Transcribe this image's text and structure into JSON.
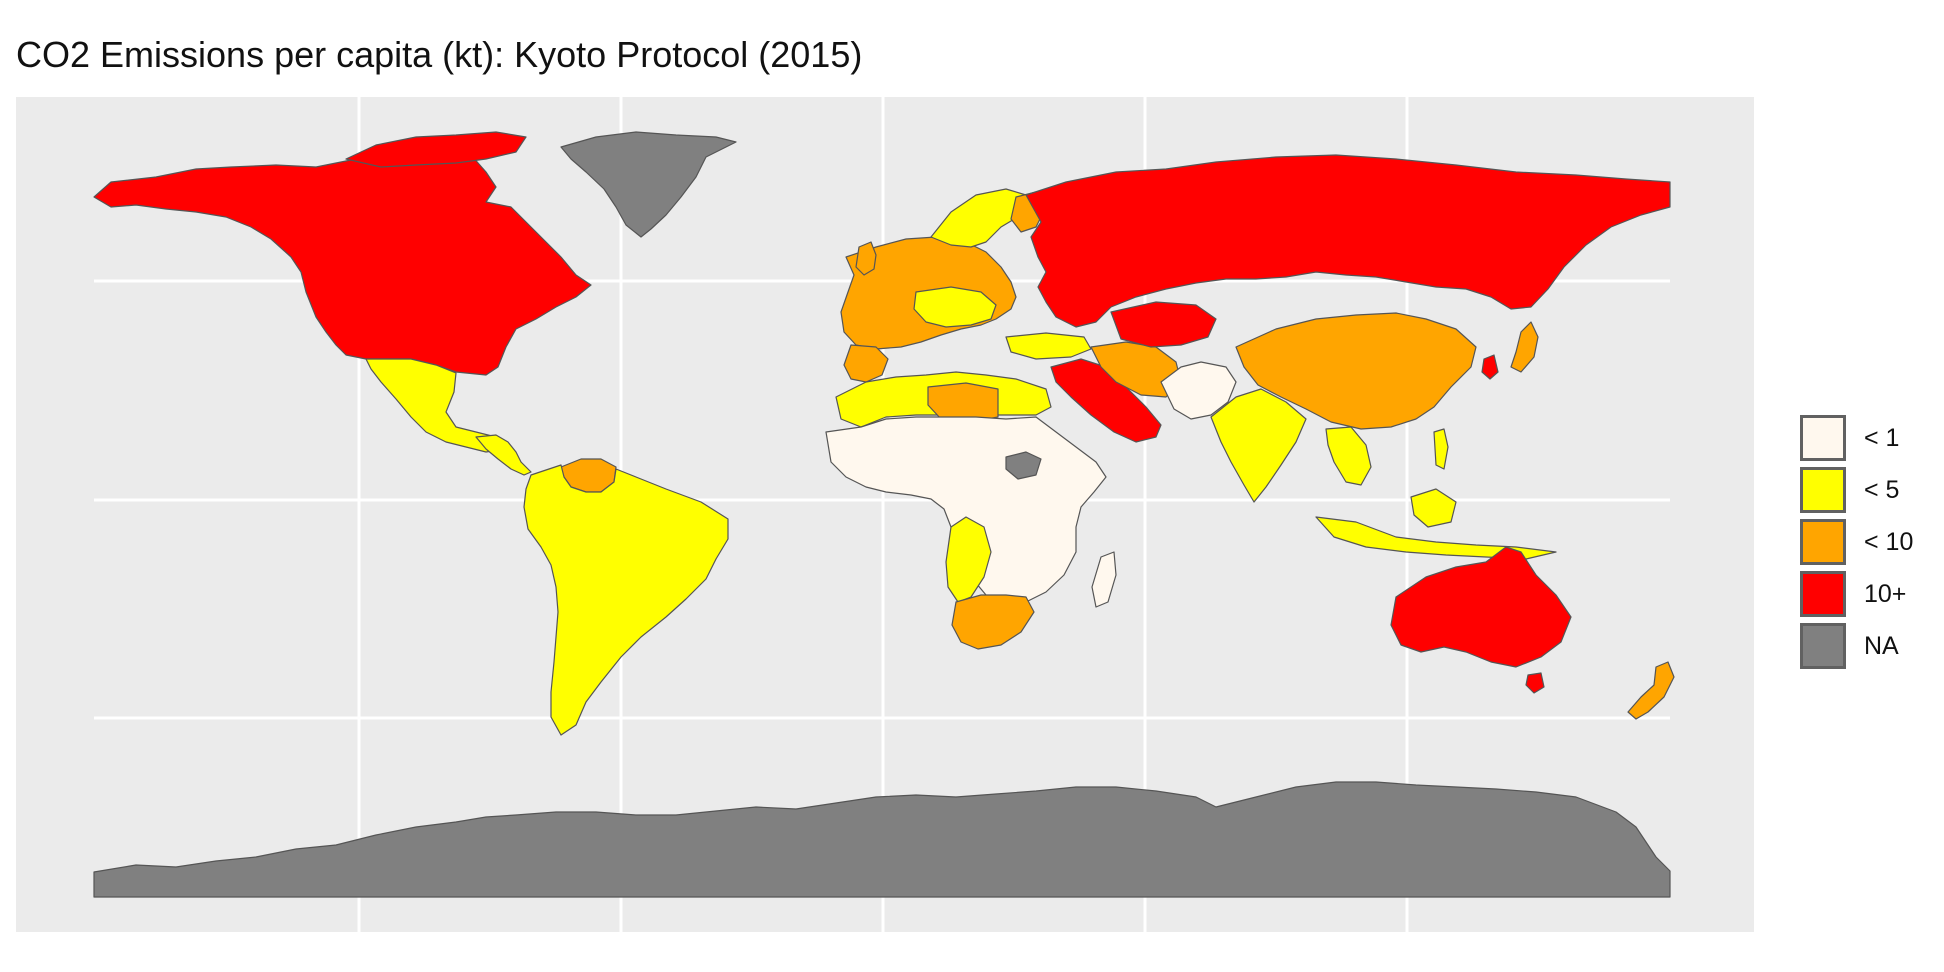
{
  "title": "CO2 Emissions per capita (kt): Kyoto Protocol (2015)",
  "legend": [
    {
      "label": "< 1",
      "color": "#FFF8EE"
    },
    {
      "label": "< 5",
      "color": "#FFFF00"
    },
    {
      "label": "< 10",
      "color": "#FFA500"
    },
    {
      "label": "10+",
      "color": "#FF0000"
    },
    {
      "label": "NA",
      "color": "#808080"
    }
  ],
  "colors": {
    "panel_background": "#EBEBEB",
    "grid": "#FFFFFF",
    "border": "#555555"
  },
  "regions": [
    {
      "name": "North America",
      "category": "10+"
    },
    {
      "name": "Greenland",
      "category": "NA"
    },
    {
      "name": "Mexico",
      "category": "< 5"
    },
    {
      "name": "Central America",
      "category": "< 5"
    },
    {
      "name": "Venezuela",
      "category": "< 10"
    },
    {
      "name": "South America",
      "category": "< 5"
    },
    {
      "name": "Europe",
      "category": "< 10"
    },
    {
      "name": "Scandinavia",
      "category": "< 5"
    },
    {
      "name": "Russia",
      "category": "10+"
    },
    {
      "name": "Middle East",
      "category": "10+"
    },
    {
      "name": "Iran",
      "category": "< 10"
    },
    {
      "name": "Central Asia",
      "category": "< 1"
    },
    {
      "name": "China",
      "category": "< 10"
    },
    {
      "name": "India",
      "category": "< 5"
    },
    {
      "name": "Southeast Asia",
      "category": "< 5"
    },
    {
      "name": "Japan",
      "category": "< 10"
    },
    {
      "name": "North Africa",
      "category": "< 5"
    },
    {
      "name": "Libya",
      "category": "< 10"
    },
    {
      "name": "Sub-Saharan Africa",
      "category": "< 1"
    },
    {
      "name": "South Sudan",
      "category": "NA"
    },
    {
      "name": "Southern Africa",
      "category": "< 5"
    },
    {
      "name": "South Africa",
      "category": "< 10"
    },
    {
      "name": "Madagascar",
      "category": "< 1"
    },
    {
      "name": "Australia",
      "category": "10+"
    },
    {
      "name": "New Zealand",
      "category": "< 10"
    },
    {
      "name": "Antarctica",
      "category": "NA"
    }
  ]
}
